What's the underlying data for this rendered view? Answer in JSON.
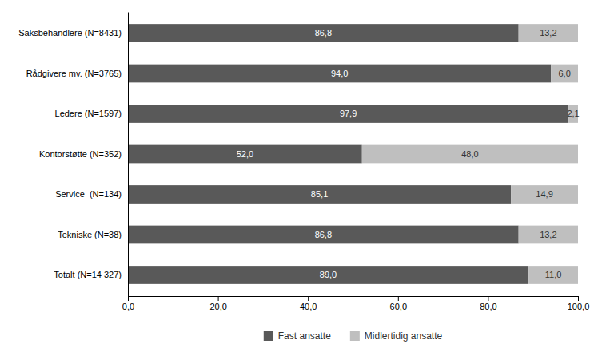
{
  "chart_data": {
    "type": "bar",
    "orientation": "horizontal",
    "stacked": true,
    "data_labels": true,
    "grid": false,
    "legend": "bottom",
    "categories": [
      "Saksbehandlere (N=8431)",
      "Rådgivere mv. (N=3765)",
      "Ledere (N=1597)",
      "Kontorstøtte (N=352)",
      "Service  (N=134)",
      "Tekniske (N=38)",
      "Totalt (N=14 327)"
    ],
    "series": [
      {
        "name": "Fast ansatte",
        "color": "#595959",
        "values": [
          86.8,
          94.0,
          97.9,
          52.0,
          85.1,
          86.8,
          89.0
        ],
        "value_labels": [
          "86,8",
          "94,0",
          "97,9",
          "52,0",
          "85,1",
          "86,8",
          "89,0"
        ]
      },
      {
        "name": "Midlertidig ansatte",
        "color": "#bfbfbf",
        "values": [
          13.2,
          6.0,
          2.1,
          48.0,
          14.9,
          13.2,
          11.0
        ],
        "value_labels": [
          "13,2",
          "6,0",
          "2,1",
          "48,0",
          "14,9",
          "13,2",
          "11,0"
        ]
      }
    ],
    "xlim": [
      0,
      100
    ],
    "xticks": [
      {
        "value": 0.0,
        "label": "0,0"
      },
      {
        "value": 20.0,
        "label": "20,0"
      },
      {
        "value": 40.0,
        "label": "40,0"
      },
      {
        "value": 60.0,
        "label": "60,0"
      },
      {
        "value": 80.0,
        "label": "80,0"
      },
      {
        "value": 100.0,
        "label": "100,0"
      }
    ]
  }
}
